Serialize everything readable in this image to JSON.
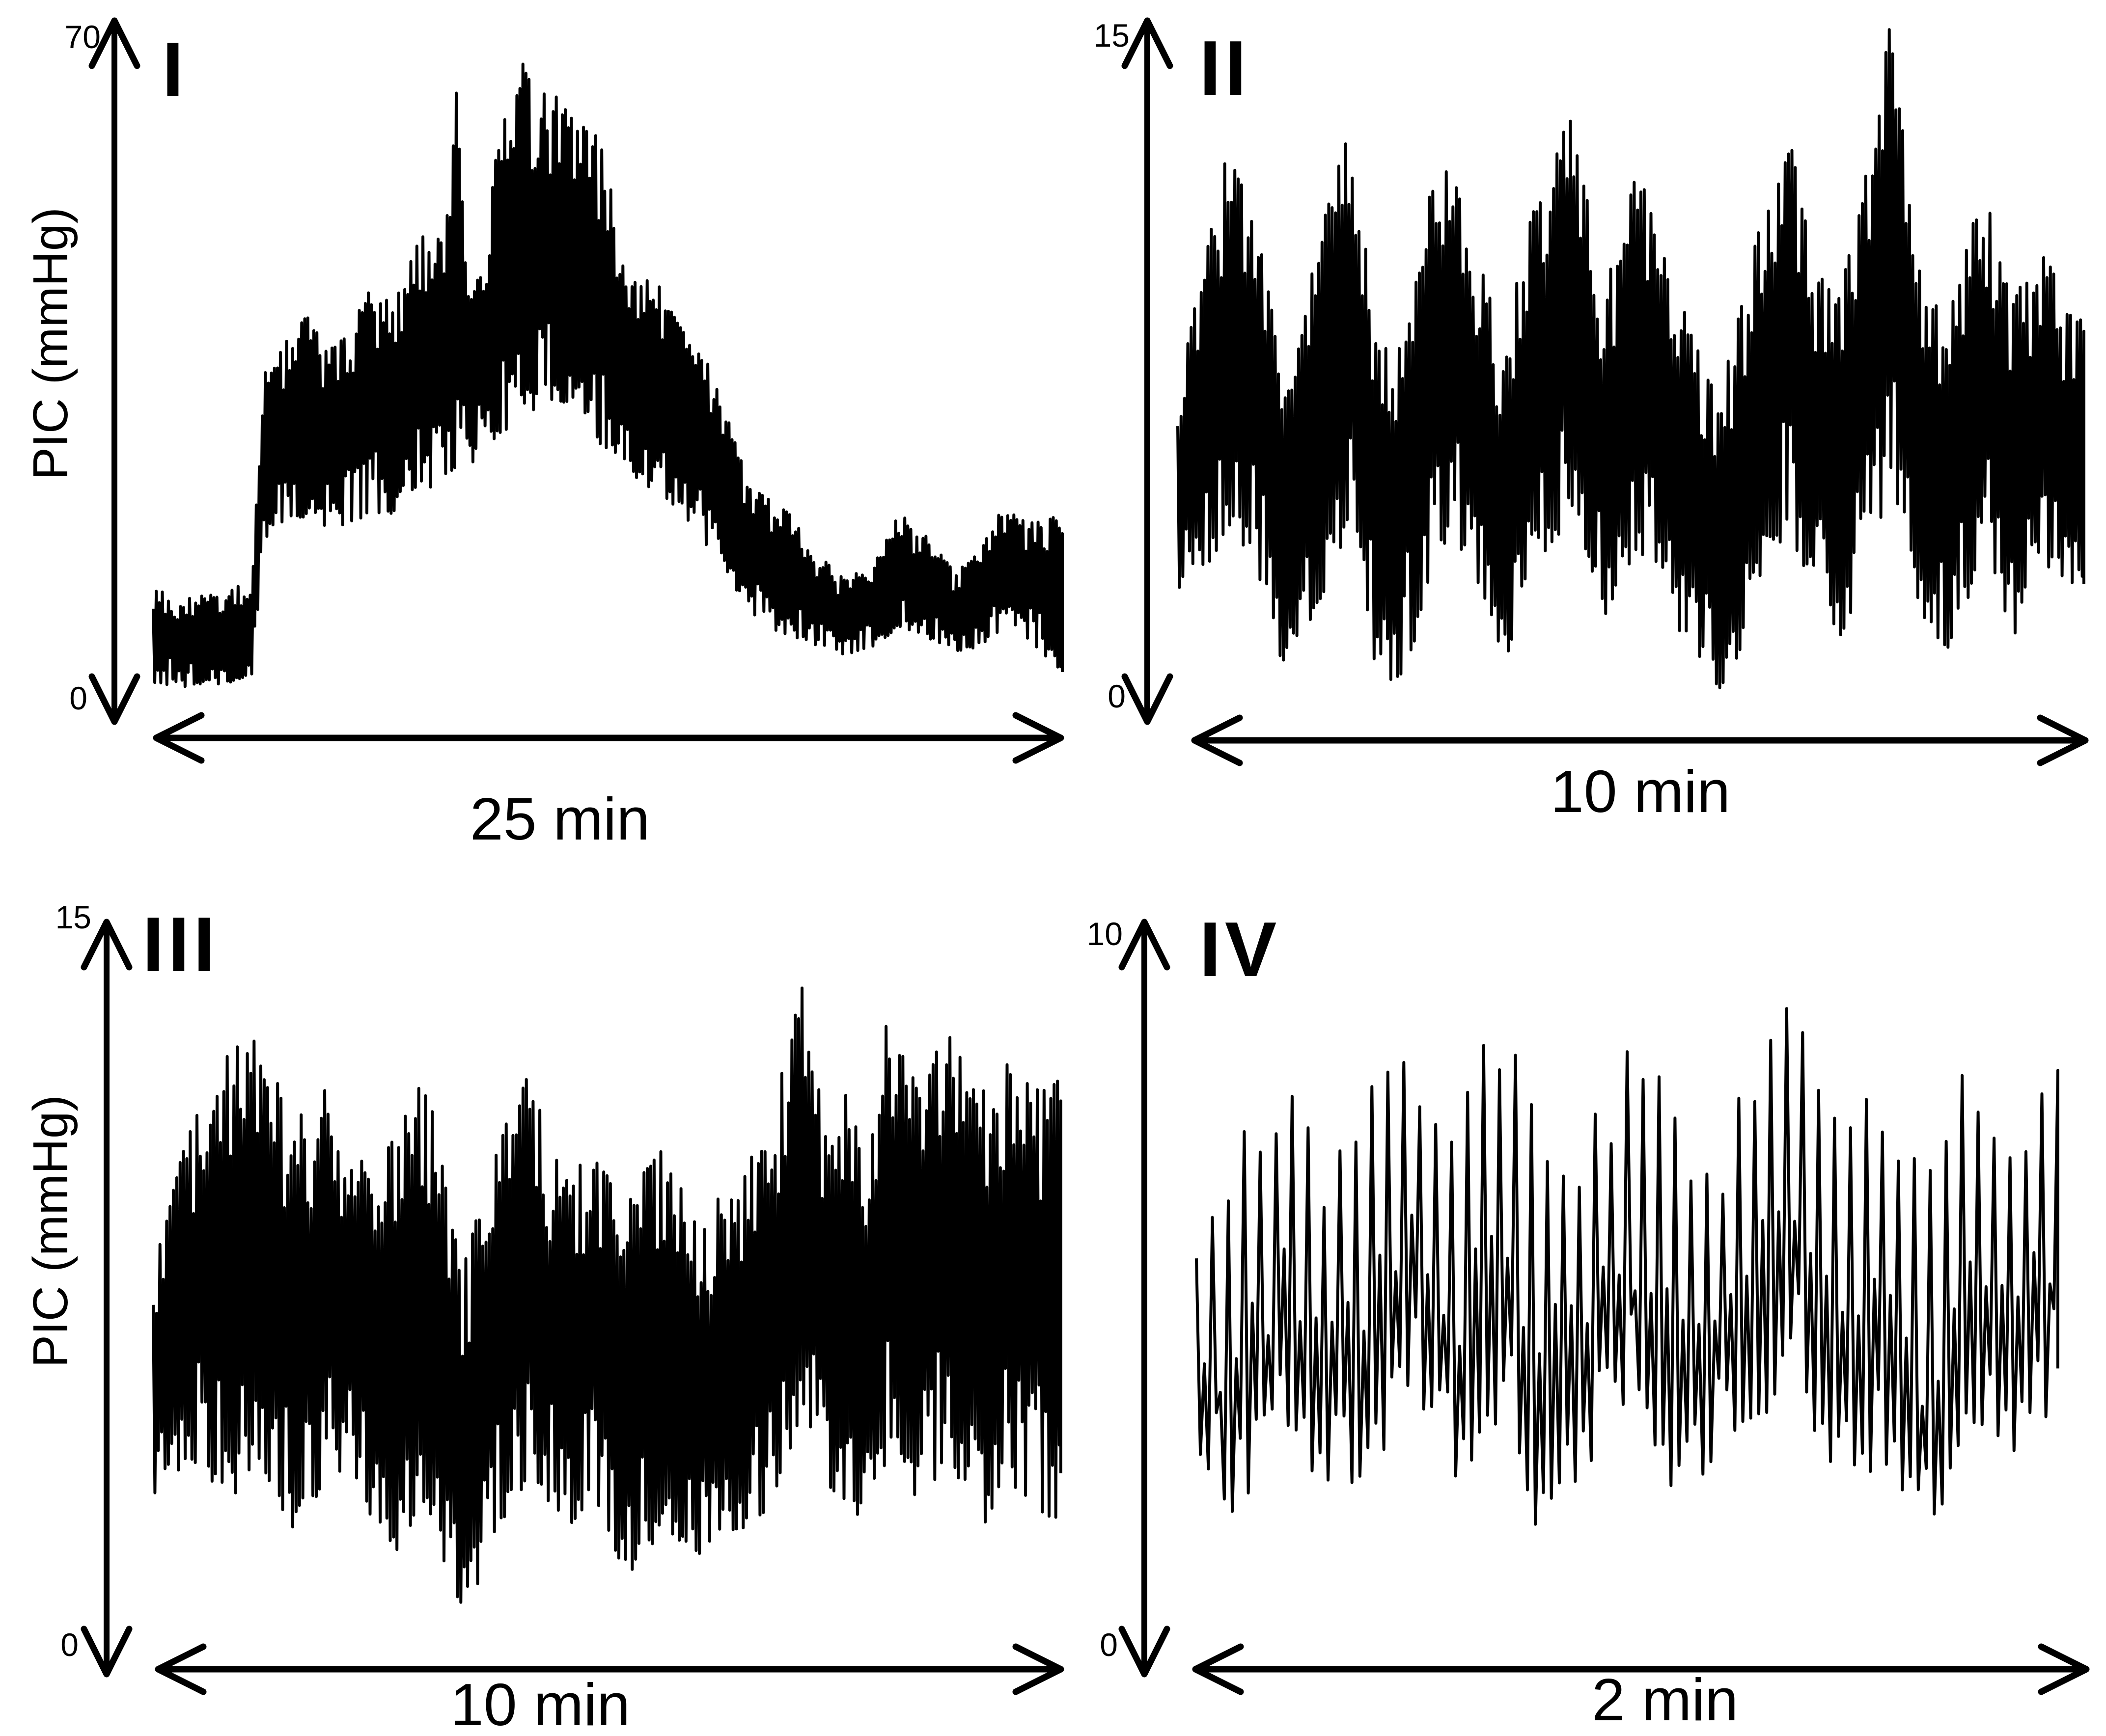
{
  "figure": {
    "background": "#ffffff",
    "ink": "#000000",
    "y_axis_label": "PIC (mmHg)"
  },
  "chart_data": [
    {
      "panel": "I",
      "type": "area",
      "title": "I",
      "ylabel": "PIC (mmHg)",
      "y_top_tick": "70",
      "y_bottom_tick": "0",
      "ylim": [
        0,
        70
      ],
      "x_span_label": "25 min",
      "t_max_min": 25,
      "grid": false,
      "cycles": 300,
      "envelope": {
        "t": [
          0,
          1,
          2,
          2.7,
          3.0,
          3.6,
          4.2,
          4.8,
          5.4,
          6.0,
          6.6,
          7.2,
          7.7,
          8.0,
          8.3,
          8.6,
          9.0,
          9.4,
          10.0,
          10.5,
          11.0,
          11.5,
          12.0,
          12.4,
          12.8,
          13.3,
          13.8,
          14.3,
          14.8,
          15.3,
          15.8,
          16.3,
          16.8,
          17.5,
          18.2,
          19.0,
          19.8,
          20.5,
          21.2,
          22.0,
          22.7,
          23.4,
          24.2,
          25.0
        ],
        "upper": [
          12,
          11,
          12,
          13,
          35,
          38,
          42,
          38,
          40,
          44,
          42,
          48,
          52,
          50,
          68,
          46,
          45,
          58,
          69,
          65,
          64,
          66,
          62,
          58,
          50,
          47,
          45,
          41,
          38,
          36,
          30,
          24,
          22,
          20,
          16,
          13,
          15,
          20,
          18,
          14,
          16,
          21,
          19,
          20
        ],
        "lower": [
          2,
          1.5,
          2,
          3,
          17,
          18,
          20,
          18,
          19,
          20,
          20,
          22,
          23,
          24,
          25,
          25,
          26,
          28,
          30,
          31,
          32,
          30,
          28,
          27,
          26,
          23,
          22,
          20,
          18,
          16,
          13,
          10,
          8,
          7,
          6,
          5,
          6,
          8,
          7,
          5,
          6,
          8,
          6,
          3
        ]
      }
    },
    {
      "panel": "II",
      "type": "area",
      "title": "II",
      "ylabel": "",
      "y_top_tick": "15",
      "y_bottom_tick": "0",
      "ylim": [
        0,
        15
      ],
      "x_span_label": "10 min",
      "t_max_min": 10,
      "grid": false,
      "cycles": 270,
      "envelope": {
        "t": [
          0,
          0.3,
          0.55,
          0.85,
          1.1,
          1.25,
          1.5,
          1.9,
          2.15,
          2.4,
          2.7,
          3.0,
          3.3,
          3.6,
          3.9,
          4.35,
          4.7,
          5.05,
          5.4,
          5.7,
          6.0,
          6.35,
          6.7,
          7.0,
          7.3,
          7.6,
          7.87,
          8.15,
          8.5,
          8.9,
          9.2,
          9.55,
          9.8,
          10
        ],
        "upper": [
          7,
          10,
          12.3,
          11,
          8,
          7,
          10,
          12.8,
          9,
          8,
          11,
          12.4,
          10,
          8,
          11,
          13.3,
          9,
          12,
          10,
          8,
          7,
          10,
          13.1,
          10,
          9,
          12,
          15.2,
          10,
          9,
          11.5,
          9,
          10.1,
          9,
          8.5
        ],
        "lower": [
          2.5,
          3,
          4,
          3,
          1,
          0.5,
          2,
          4,
          1,
          0.4,
          2,
          4,
          2.5,
          1,
          3,
          4.2,
          2,
          3.5,
          2,
          1,
          0.3,
          2,
          4,
          2.5,
          1.5,
          3,
          5,
          2,
          1.2,
          3.5,
          1.5,
          3,
          2,
          2.5
        ]
      }
    },
    {
      "panel": "III",
      "type": "area",
      "title": "III",
      "ylabel": "PIC (mmHg)",
      "y_top_tick": "15",
      "y_bottom_tick": "0",
      "ylim": [
        0,
        15
      ],
      "x_span_label": "10 min",
      "t_max_min": 10,
      "grid": false,
      "cycles": 270,
      "envelope": {
        "t": [
          0,
          0.4,
          0.8,
          1.15,
          1.5,
          1.9,
          2.3,
          2.7,
          3.0,
          3.4,
          3.7,
          4.1,
          4.5,
          4.85,
          5.2,
          5.6,
          6.0,
          6.5,
          6.8,
          7.13,
          7.4,
          7.6,
          7.85,
          8.07,
          8.4,
          8.75,
          9.1,
          9.4,
          9.7,
          10
        ],
        "upper": [
          8,
          11,
          12.5,
          13.4,
          11,
          11.8,
          10.5,
          11,
          12.1,
          8,
          10,
          12.2,
          10,
          10.3,
          9.5,
          10.5,
          9,
          10.1,
          11,
          14.1,
          11,
          11.8,
          10.5,
          13.1,
          12,
          13,
          11.6,
          12.5,
          11.8,
          12
        ],
        "lower": [
          3,
          4,
          3,
          4,
          2.5,
          3.5,
          3,
          2,
          3,
          0.5,
          2,
          3.5,
          2.5,
          3,
          1.5,
          2.5,
          2,
          2.5,
          3,
          5,
          3.5,
          3,
          2.5,
          4,
          3,
          4,
          2.5,
          3.5,
          3,
          2.5
        ]
      }
    },
    {
      "panel": "IV",
      "type": "line",
      "title": "IV",
      "ylabel": "",
      "y_top_tick": "10",
      "y_bottom_tick": "0",
      "ylim": [
        0,
        10
      ],
      "x_span_label": "2 min",
      "t_max_min": 2,
      "grid": false,
      "cycles": 108,
      "envelope": {
        "t": [
          0,
          0.1,
          0.2,
          0.3,
          0.42,
          0.5,
          0.58,
          0.7,
          0.78,
          0.9,
          1.0,
          1.1,
          1.18,
          1.3,
          1.38,
          1.5,
          1.58,
          1.7,
          1.78,
          1.9,
          2.0
        ],
        "upper": [
          6,
          7.5,
          8.8,
          7,
          8.5,
          9,
          7.2,
          9.7,
          8,
          7.5,
          9,
          8.2,
          7,
          8.8,
          9.5,
          7.5,
          8.5,
          7,
          8.8,
          8,
          8.5
        ],
        "lower": [
          2,
          1,
          2.5,
          1.5,
          2,
          3,
          1.5,
          2.5,
          1,
          2,
          3,
          1.5,
          2,
          2.5,
          3,
          1.5,
          2,
          1,
          2.5,
          2,
          3
        ]
      }
    }
  ]
}
